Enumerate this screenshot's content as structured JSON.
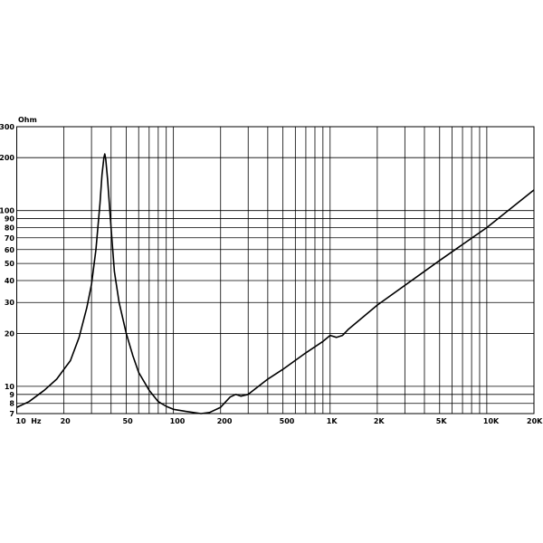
{
  "chart_data": {
    "type": "line",
    "title": "",
    "ylabel": "Ohm",
    "xlabel": "",
    "x_scale": "log",
    "y_scale": "log",
    "xlim": [
      10,
      20000
    ],
    "ylim": [
      7,
      300
    ],
    "grid": true,
    "line_color": "#000000",
    "x_gridlines": [
      10,
      20,
      30,
      40,
      50,
      60,
      70,
      80,
      90,
      100,
      200,
      300,
      400,
      500,
      600,
      700,
      800,
      900,
      1000,
      2000,
      3000,
      4000,
      5000,
      6000,
      7000,
      8000,
      9000,
      10000,
      20000
    ],
    "y_gridlines": [
      7,
      8,
      9,
      10,
      20,
      30,
      40,
      50,
      60,
      70,
      80,
      90,
      100,
      200,
      300
    ],
    "x_ticks": [
      {
        "value": 10,
        "label": "10  Hz"
      },
      {
        "value": 20,
        "label": "20"
      },
      {
        "value": 50,
        "label": "50"
      },
      {
        "value": 100,
        "label": "100"
      },
      {
        "value": 200,
        "label": "200"
      },
      {
        "value": 500,
        "label": "500"
      },
      {
        "value": 1000,
        "label": "1K"
      },
      {
        "value": 2000,
        "label": "2K"
      },
      {
        "value": 5000,
        "label": "5K"
      },
      {
        "value": 10000,
        "label": "10K"
      },
      {
        "value": 20000,
        "label": "20K"
      }
    ],
    "y_ticks": [
      {
        "value": 7,
        "label": "7"
      },
      {
        "value": 8,
        "label": "8"
      },
      {
        "value": 9,
        "label": "9"
      },
      {
        "value": 10,
        "label": "10"
      },
      {
        "value": 20,
        "label": "20"
      },
      {
        "value": 30,
        "label": "30"
      },
      {
        "value": 40,
        "label": "40"
      },
      {
        "value": 50,
        "label": "50"
      },
      {
        "value": 60,
        "label": "60"
      },
      {
        "value": 70,
        "label": "70"
      },
      {
        "value": 80,
        "label": "80"
      },
      {
        "value": 90,
        "label": "90"
      },
      {
        "value": 100,
        "label": "100"
      },
      {
        "value": 200,
        "label": "200"
      },
      {
        "value": 300,
        "label": "300"
      }
    ],
    "series": [
      {
        "x": [
          10,
          12,
          15,
          18,
          20,
          22,
          25,
          28,
          30,
          32,
          34,
          35,
          36,
          36.5,
          37,
          38,
          40,
          42,
          45,
          50,
          55,
          60,
          70,
          80,
          90,
          100,
          120,
          150,
          170,
          200,
          230,
          250,
          270,
          300,
          400,
          500,
          700,
          900,
          1000,
          1100,
          1200,
          1300,
          2000,
          5000,
          10000,
          20000
        ],
        "y": [
          7.6,
          8.2,
          9.5,
          11,
          12.5,
          14,
          19,
          28,
          38,
          60,
          110,
          160,
          200,
          210,
          195,
          150,
          80,
          45,
          30,
          20,
          15,
          12,
          9.5,
          8.2,
          7.7,
          7.4,
          7.2,
          7.0,
          7.1,
          7.6,
          8.7,
          9.0,
          8.8,
          9.0,
          11,
          12.5,
          15.5,
          18,
          19.5,
          19,
          19.5,
          21,
          29,
          52,
          80,
          131
        ]
      }
    ]
  }
}
